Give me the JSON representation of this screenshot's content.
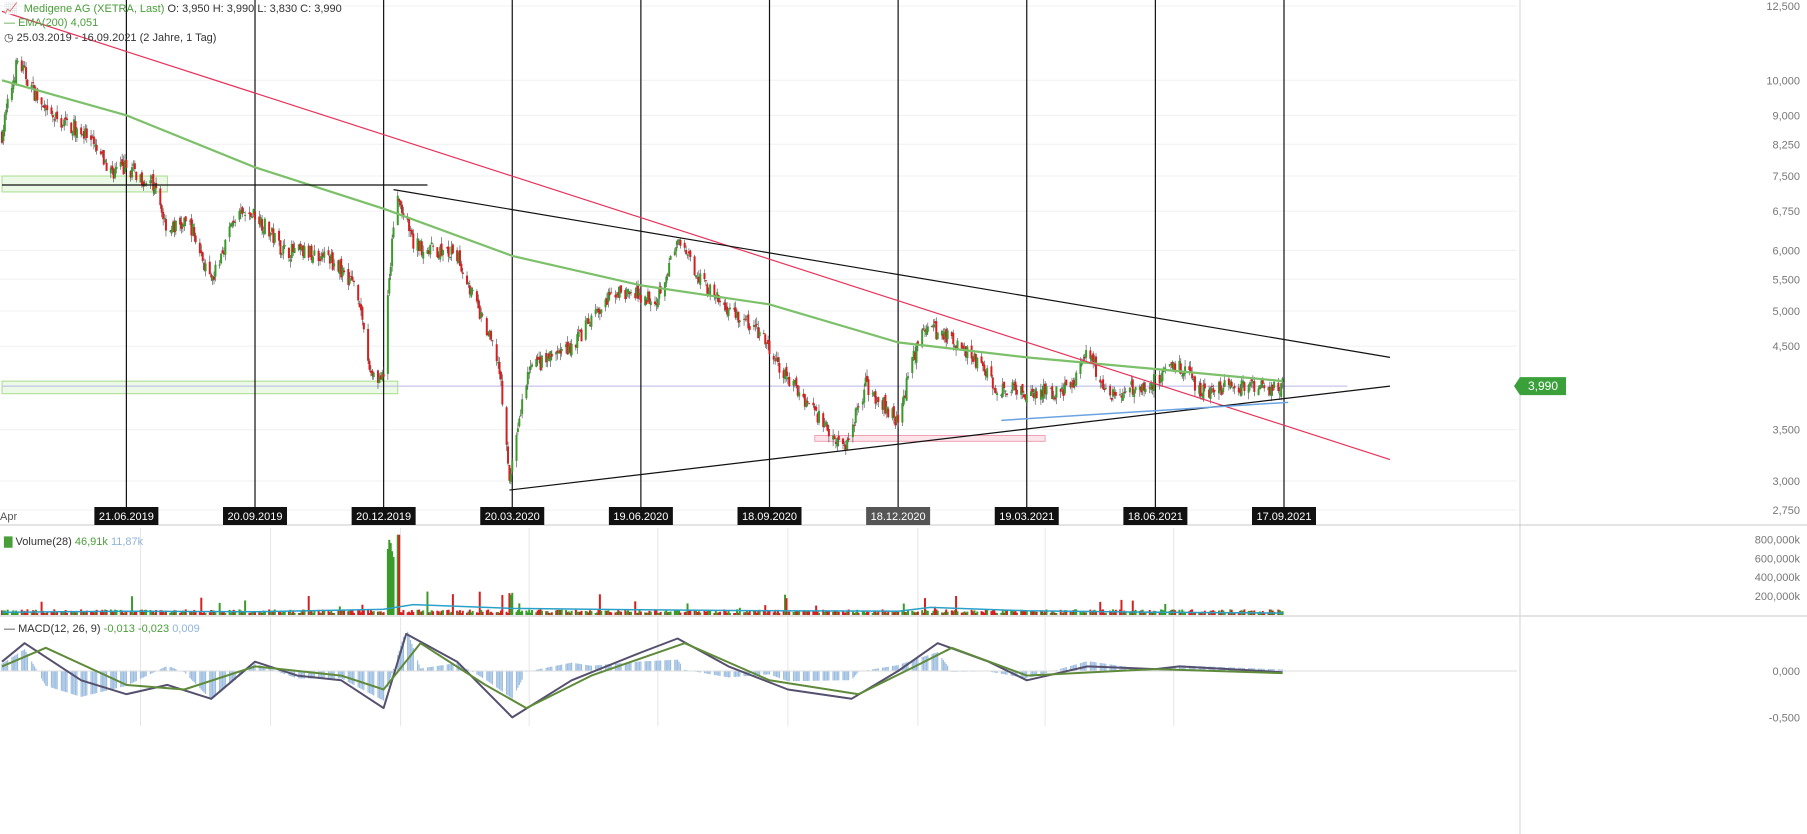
{
  "header": {
    "instrument": "Medigene AG (XETRA, Last)",
    "ohlc": "O: 3,950  H: 3,990  L: 3,830  C: 3,990",
    "ema_label": "EMA(200)",
    "ema_value": "4,051",
    "period": "25.03.2019 - 16.09.2021",
    "period_note": "(2 Jahre, 1 Tag)"
  },
  "volume_legend": {
    "label": "Volume(28)",
    "v1": "46,91k",
    "v2": "11,87k"
  },
  "macd_legend": {
    "label": "MACD(12, 26, 9)",
    "v1": "-0,013",
    "v2": "-0,023",
    "v3": "0,009"
  },
  "colors": {
    "up": "#3a9a2a",
    "down": "#d42020",
    "ema": "#7cc06a",
    "trend_red": "#e8335a",
    "trend_black": "#111111",
    "support_blue": "#6aa3e0",
    "marker_bg": "#111111",
    "marker_bg_active": "#555555",
    "macd_line": "#55506e",
    "macd_signal": "#5f8a3a",
    "macd_hist": "#9cbde0",
    "vol_ma": "#2aa1c8"
  },
  "chart_data": {
    "type": "line",
    "title": "Medigene AG (XETRA, Last)",
    "scale": "log",
    "ylim": [
      2.75,
      12.5
    ],
    "y_ticks": [
      "12,500",
      "10,000",
      "9,000",
      "8,250",
      "7,500",
      "6,750",
      "6,000",
      "5,500",
      "5,000",
      "4,500",
      "3,990",
      "3,500",
      "3,000",
      "2,750"
    ],
    "x_ticks": [
      "Apr",
      "21.06.2019",
      "20.09.2019",
      "20.12.2019",
      "20.03.2020",
      "19.06.2020",
      "18.09.2020",
      "18.12.2020",
      "19.03.2021",
      "18.06.2021",
      "17.09.2021"
    ],
    "highlighted_tick": "18.12.2020",
    "last_price_label": "3,990",
    "price_path": [
      {
        "x": "2019-03-25",
        "y": 8.5
      },
      {
        "x": "2019-04-05",
        "y": 10.6
      },
      {
        "x": "2019-04-25",
        "y": 9.0
      },
      {
        "x": "2019-05-20",
        "y": 8.6
      },
      {
        "x": "2019-06-10",
        "y": 7.6
      },
      {
        "x": "2019-06-21",
        "y": 7.7
      },
      {
        "x": "2019-07-10",
        "y": 7.3
      },
      {
        "x": "2019-07-20",
        "y": 6.4
      },
      {
        "x": "2019-08-05",
        "y": 6.5
      },
      {
        "x": "2019-08-20",
        "y": 5.4
      },
      {
        "x": "2019-09-05",
        "y": 6.6
      },
      {
        "x": "2019-09-20",
        "y": 6.7
      },
      {
        "x": "2019-10-10",
        "y": 6.0
      },
      {
        "x": "2019-11-10",
        "y": 5.9
      },
      {
        "x": "2019-12-01",
        "y": 5.4
      },
      {
        "x": "2019-12-10",
        "y": 4.2
      },
      {
        "x": "2019-12-20",
        "y": 4.05
      },
      {
        "x": "2019-12-24",
        "y": 5.6
      },
      {
        "x": "2019-12-30",
        "y": 7.0
      },
      {
        "x": "2020-01-10",
        "y": 6.1
      },
      {
        "x": "2020-02-10",
        "y": 5.9
      },
      {
        "x": "2020-02-25",
        "y": 5.0
      },
      {
        "x": "2020-03-10",
        "y": 4.3
      },
      {
        "x": "2020-03-18",
        "y": 3.0
      },
      {
        "x": "2020-04-01",
        "y": 4.2
      },
      {
        "x": "2020-05-01",
        "y": 4.5
      },
      {
        "x": "2020-06-01",
        "y": 5.3
      },
      {
        "x": "2020-06-30",
        "y": 5.2
      },
      {
        "x": "2020-07-15",
        "y": 6.1
      },
      {
        "x": "2020-08-10",
        "y": 5.2
      },
      {
        "x": "2020-09-10",
        "y": 4.7
      },
      {
        "x": "2020-09-25",
        "y": 4.2
      },
      {
        "x": "2020-10-20",
        "y": 3.7
      },
      {
        "x": "2020-11-10",
        "y": 3.3
      },
      {
        "x": "2020-11-25",
        "y": 4.0
      },
      {
        "x": "2020-12-18",
        "y": 3.6
      },
      {
        "x": "2021-01-05",
        "y": 4.8
      },
      {
        "x": "2021-02-01",
        "y": 4.5
      },
      {
        "x": "2021-02-25",
        "y": 4.0
      },
      {
        "x": "2021-03-19",
        "y": 3.9
      },
      {
        "x": "2021-04-20",
        "y": 3.95
      },
      {
        "x": "2021-04-30",
        "y": 4.5
      },
      {
        "x": "2021-05-15",
        "y": 3.85
      },
      {
        "x": "2021-06-18",
        "y": 4.05
      },
      {
        "x": "2021-07-01",
        "y": 4.3
      },
      {
        "x": "2021-07-20",
        "y": 3.95
      },
      {
        "x": "2021-09-16",
        "y": 3.99
      }
    ],
    "ema200_path": [
      {
        "x": "2019-03-25",
        "y": 10.0
      },
      {
        "x": "2019-06-21",
        "y": 9.0
      },
      {
        "x": "2019-09-20",
        "y": 7.7
      },
      {
        "x": "2019-12-20",
        "y": 6.8
      },
      {
        "x": "2020-03-20",
        "y": 5.9
      },
      {
        "x": "2020-06-19",
        "y": 5.4
      },
      {
        "x": "2020-09-18",
        "y": 5.1
      },
      {
        "x": "2020-12-18",
        "y": 4.55
      },
      {
        "x": "2021-03-19",
        "y": 4.35
      },
      {
        "x": "2021-06-18",
        "y": 4.2
      },
      {
        "x": "2021-09-16",
        "y": 4.05
      }
    ],
    "volume_ma_path": [
      {
        "x": "2019-03-25",
        "y": 30
      },
      {
        "x": "2019-06-21",
        "y": 40
      },
      {
        "x": "2019-09-20",
        "y": 35
      },
      {
        "x": "2019-12-20",
        "y": 60
      },
      {
        "x": "2020-01-10",
        "y": 110
      },
      {
        "x": "2020-03-20",
        "y": 70
      },
      {
        "x": "2020-06-19",
        "y": 55
      },
      {
        "x": "2020-09-18",
        "y": 45
      },
      {
        "x": "2020-12-18",
        "y": 40
      },
      {
        "x": "2021-01-10",
        "y": 80
      },
      {
        "x": "2021-03-19",
        "y": 45
      },
      {
        "x": "2021-06-18",
        "y": 30
      },
      {
        "x": "2021-09-16",
        "y": 20
      }
    ],
    "volume_ylim": [
      0,
      900
    ],
    "volume_ticks": [
      "800,000k",
      "600,000k",
      "400,000k",
      "200,000k"
    ],
    "macd_ylim": [
      -0.55,
      0.55
    ],
    "macd_ticks": [
      "0,000",
      "-0,500"
    ],
    "macd_path": [
      {
        "x": "2019-03-25",
        "y": 0.1
      },
      {
        "x": "2019-04-10",
        "y": 0.3
      },
      {
        "x": "2019-05-20",
        "y": -0.1
      },
      {
        "x": "2019-06-21",
        "y": -0.25
      },
      {
        "x": "2019-07-20",
        "y": -0.15
      },
      {
        "x": "2019-08-20",
        "y": -0.3
      },
      {
        "x": "2019-09-20",
        "y": 0.1
      },
      {
        "x": "2019-10-20",
        "y": -0.05
      },
      {
        "x": "2019-11-20",
        "y": -0.1
      },
      {
        "x": "2019-12-20",
        "y": -0.4
      },
      {
        "x": "2020-01-05",
        "y": 0.4
      },
      {
        "x": "2020-02-10",
        "y": 0.1
      },
      {
        "x": "2020-03-20",
        "y": -0.5
      },
      {
        "x": "2020-05-01",
        "y": -0.1
      },
      {
        "x": "2020-06-19",
        "y": 0.2
      },
      {
        "x": "2020-07-15",
        "y": 0.35
      },
      {
        "x": "2020-08-20",
        "y": 0.05
      },
      {
        "x": "2020-10-01",
        "y": -0.2
      },
      {
        "x": "2020-11-15",
        "y": -0.3
      },
      {
        "x": "2020-12-18",
        "y": 0.0
      },
      {
        "x": "2021-01-15",
        "y": 0.3
      },
      {
        "x": "2021-02-20",
        "y": 0.1
      },
      {
        "x": "2021-03-19",
        "y": -0.1
      },
      {
        "x": "2021-05-01",
        "y": 0.05
      },
      {
        "x": "2021-06-18",
        "y": 0.02
      },
      {
        "x": "2021-07-05",
        "y": 0.05
      },
      {
        "x": "2021-09-16",
        "y": -0.013
      }
    ],
    "macd_signal_path": [
      {
        "x": "2019-03-25",
        "y": 0.05
      },
      {
        "x": "2019-04-25",
        "y": 0.25
      },
      {
        "x": "2019-06-21",
        "y": -0.15
      },
      {
        "x": "2019-08-01",
        "y": -0.2
      },
      {
        "x": "2019-09-20",
        "y": 0.05
      },
      {
        "x": "2019-11-20",
        "y": -0.05
      },
      {
        "x": "2019-12-20",
        "y": -0.2
      },
      {
        "x": "2020-01-15",
        "y": 0.3
      },
      {
        "x": "2020-03-01",
        "y": -0.15
      },
      {
        "x": "2020-03-30",
        "y": -0.4
      },
      {
        "x": "2020-05-15",
        "y": -0.05
      },
      {
        "x": "2020-07-20",
        "y": 0.3
      },
      {
        "x": "2020-09-18",
        "y": -0.1
      },
      {
        "x": "2020-11-20",
        "y": -0.25
      },
      {
        "x": "2020-12-30",
        "y": 0.05
      },
      {
        "x": "2021-01-25",
        "y": 0.25
      },
      {
        "x": "2021-03-19",
        "y": -0.05
      },
      {
        "x": "2021-06-18",
        "y": 0.02
      },
      {
        "x": "2021-09-16",
        "y": -0.023
      }
    ],
    "trendlines": [
      {
        "name": "red-downtrend",
        "from": {
          "x": "2019-03-25",
          "y": 12.3
        },
        "to": {
          "x": "2021-12-01",
          "y": 3.2
        }
      },
      {
        "name": "upper-triangle",
        "from": {
          "x": "2019-12-27",
          "y": 7.2
        },
        "to": {
          "x": "2021-12-01",
          "y": 4.35
        }
      },
      {
        "name": "lower-triangle",
        "from": {
          "x": "2020-03-18",
          "y": 2.92
        },
        "to": {
          "x": "2021-12-01",
          "y": 3.99
        }
      },
      {
        "name": "support-blue",
        "from": {
          "x": "2021-03-01",
          "y": 3.6
        },
        "to": {
          "x": "2021-09-20",
          "y": 3.8
        }
      },
      {
        "name": "resistance-black",
        "from": {
          "x": "2019-03-25",
          "y": 7.3
        },
        "to": {
          "x": "2020-01-20",
          "y": 7.3
        }
      }
    ],
    "zones": [
      {
        "name": "green-zone-upper",
        "x0": "2019-03-25",
        "x1": "2019-07-20",
        "y0": 7.15,
        "y1": 7.5
      },
      {
        "name": "green-zone-lower",
        "x0": "2019-03-25",
        "x1": "2019-12-30",
        "y0": 3.9,
        "y1": 4.05
      },
      {
        "name": "pink-zone",
        "x0": "2020-10-20",
        "x1": "2021-04-01",
        "y0": 3.38,
        "y1": 3.44
      }
    ],
    "last_price_line": {
      "y": 3.99,
      "x0": "2019-03-25",
      "x1": "2021-11-01"
    }
  }
}
